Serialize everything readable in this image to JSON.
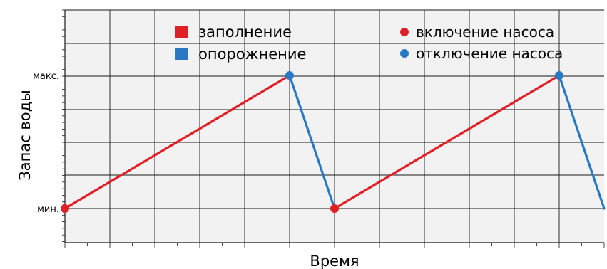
{
  "chart_data": {
    "type": "line",
    "xlabel": "Время",
    "ylabel": "Запас воды",
    "y_ticks": [
      {
        "label": "мин.",
        "value": 0
      },
      {
        "label": "макс.",
        "value": 1
      }
    ],
    "xlim": [
      0,
      12
    ],
    "ylim": [
      -1.0,
      1.9
    ],
    "grid": true,
    "legend": {
      "series": [
        {
          "key": "fill",
          "label": "заполнение",
          "color": "#e01f26",
          "marker": "square"
        },
        {
          "key": "drain",
          "label": "опорожнение",
          "color": "#2878c3",
          "marker": "square"
        }
      ],
      "events": [
        {
          "key": "pump_on",
          "label": "включение насоса",
          "color": "#e01f26",
          "marker": "circle"
        },
        {
          "key": "pump_off",
          "label": "отключение насоса",
          "color": "#2878c3",
          "marker": "circle"
        }
      ]
    },
    "segments": [
      {
        "series": "fill",
        "from": [
          0,
          0
        ],
        "to": [
          5,
          1
        ]
      },
      {
        "series": "drain",
        "from": [
          5,
          1
        ],
        "to": [
          6,
          0
        ]
      },
      {
        "series": "fill",
        "from": [
          6,
          0
        ],
        "to": [
          11,
          1
        ]
      },
      {
        "series": "drain",
        "from": [
          11,
          1
        ],
        "to": [
          12,
          0
        ]
      }
    ],
    "points": [
      {
        "event": "pump_on",
        "x": 0,
        "y": 0
      },
      {
        "event": "pump_off",
        "x": 5,
        "y": 1
      },
      {
        "event": "pump_on",
        "x": 6,
        "y": 0
      },
      {
        "event": "pump_off",
        "x": 11,
        "y": 1
      }
    ]
  }
}
